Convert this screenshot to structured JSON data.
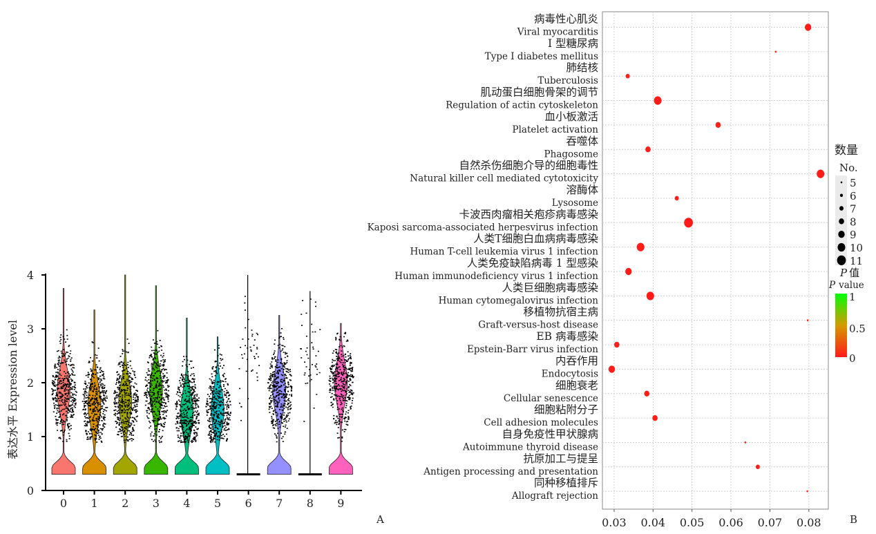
{
  "panel_labels": {
    "a": "A",
    "b": "B"
  },
  "chart_data": [
    {
      "type": "violin",
      "panel": "A",
      "ylabel": "表达水平 Expression level",
      "ylim": [
        0,
        4
      ],
      "yticks": [
        0,
        1,
        2,
        3,
        4
      ],
      "categories": [
        "0",
        "1",
        "2",
        "3",
        "4",
        "5",
        "6",
        "7",
        "8",
        "9"
      ],
      "colors": [
        "#f8766d",
        "#d89000",
        "#a3a500",
        "#39b600",
        "#00bf7d",
        "#00bfc4",
        "#00b0f6",
        "#9590ff",
        "#e76bf3",
        "#ff62bc"
      ],
      "series": [
        {
          "name": "0",
          "max": 3.75,
          "median": 1.85,
          "color": "#f8766d"
        },
        {
          "name": "1",
          "max": 3.35,
          "median": 1.6,
          "color": "#d89000"
        },
        {
          "name": "2",
          "max": 4.0,
          "median": 1.65,
          "color": "#a3a500"
        },
        {
          "name": "3",
          "max": 3.8,
          "median": 1.85,
          "color": "#39b600"
        },
        {
          "name": "4",
          "max": 3.2,
          "median": 1.45,
          "color": "#00bf7d"
        },
        {
          "name": "5",
          "max": 2.85,
          "median": 1.5,
          "color": "#00bfc4"
        },
        {
          "name": "6",
          "max": 4.0,
          "median": 2.6,
          "color": "#00b0f6"
        },
        {
          "name": "7",
          "max": 3.25,
          "median": 1.85,
          "color": "#9590ff"
        },
        {
          "name": "8",
          "max": 3.7,
          "median": 2.6,
          "color": "#e76bf3"
        },
        {
          "name": "9",
          "max": 3.1,
          "median": 2.0,
          "color": "#ff62bc"
        }
      ]
    },
    {
      "type": "scatter",
      "panel": "B",
      "xlim": [
        0.027,
        0.085
      ],
      "xticks": [
        0.03,
        0.04,
        0.05,
        0.06,
        0.07,
        0.08
      ],
      "xtick_labels": [
        "0.03",
        "0.04",
        "0.05",
        "0.06",
        "0.07",
        "0.08"
      ],
      "grid": true,
      "categories": [
        {
          "zh": "病毒性心肌炎",
          "en": "Viral myocarditis",
          "x": 0.0798,
          "count": 9,
          "p": 0.01
        },
        {
          "zh": "I 型糖尿病",
          "en": "Type I diabetes mellitus",
          "x": 0.0715,
          "count": 5,
          "p": 0.05
        },
        {
          "zh": "肺结核",
          "en": "Tuberculosis",
          "x": 0.0335,
          "count": 7,
          "p": 0.03
        },
        {
          "zh": "肌动蛋白细胞骨架的调节",
          "en": "Regulation of actin cytoskeleton",
          "x": 0.0412,
          "count": 10,
          "p": 0.01
        },
        {
          "zh": "血小板激活",
          "en": "Platelet activation",
          "x": 0.0567,
          "count": 8,
          "p": 0.02
        },
        {
          "zh": "吞噬体",
          "en": "Phagosome",
          "x": 0.0387,
          "count": 8,
          "p": 0.02
        },
        {
          "zh": "自然杀伤细胞介导的细胞毒性",
          "en": "Natural killer cell mediated cytotoxicity",
          "x": 0.083,
          "count": 10,
          "p": 0.01
        },
        {
          "zh": "溶酶体",
          "en": "Lysosome",
          "x": 0.0461,
          "count": 7,
          "p": 0.02
        },
        {
          "zh": "卡波西肉瘤相关疱疹病毒感染",
          "en": "Kaposi sarcoma-associated herpesvirus infection",
          "x": 0.0491,
          "count": 11,
          "p": 0.0
        },
        {
          "zh": "人类T细胞白血病病毒感染",
          "en": "Human T-cell leukemia virus 1 infection",
          "x": 0.0368,
          "count": 10,
          "p": 0.01
        },
        {
          "zh": "人类免疫缺陷病毒 1 型感染",
          "en": "Human immunodeficiency virus 1 infection",
          "x": 0.0337,
          "count": 9,
          "p": 0.01
        },
        {
          "zh": "人类巨细胞病毒感染",
          "en": "Human cytomegalovirus infection",
          "x": 0.0393,
          "count": 10,
          "p": 0.0
        },
        {
          "zh": "移植物抗宿主病",
          "en": "Graft-versus-host disease",
          "x": 0.0797,
          "count": 5,
          "p": 0.05
        },
        {
          "zh": "EB 病毒感染",
          "en": "Epstein-Barr virus infection",
          "x": 0.0307,
          "count": 8,
          "p": 0.02
        },
        {
          "zh": "内吞作用",
          "en": "Endocytosis",
          "x": 0.0294,
          "count": 9,
          "p": 0.01
        },
        {
          "zh": "细胞衰老",
          "en": "Cellular senescence",
          "x": 0.0384,
          "count": 8,
          "p": 0.02
        },
        {
          "zh": "细胞粘附分子",
          "en": "Cell adhesion molecules",
          "x": 0.0405,
          "count": 8,
          "p": 0.02
        },
        {
          "zh": "自身免疫性甲状腺病",
          "en": "Autoimmune thyroid disease",
          "x": 0.0637,
          "count": 5,
          "p": 0.04
        },
        {
          "zh": "抗原加工与提呈",
          "en": "Antigen processing and presentation",
          "x": 0.0669,
          "count": 7,
          "p": 0.02
        },
        {
          "zh": "同种移植排斥",
          "en": "Allograft rejection",
          "x": 0.0796,
          "count": 5,
          "p": 0.05
        }
      ],
      "legend": {
        "size_title_zh": "数量",
        "size_title_en": "No.",
        "size_values": [
          "5",
          "6",
          "7",
          "8",
          "9",
          "10",
          "11"
        ],
        "color_title_zh": "值",
        "color_title_en": "value",
        "color_title_italic": "P",
        "color_ticks": [
          "1",
          "0.5",
          "0"
        ],
        "color_low": "#ff1a1a",
        "color_mid": "#d49a00",
        "color_high": "#00ff00"
      }
    }
  ]
}
